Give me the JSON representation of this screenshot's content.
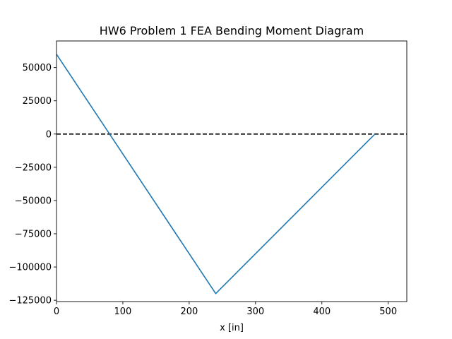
{
  "chart_data": {
    "type": "line",
    "title": "HW6 Problem 1 FEA Bending Moment Diagram",
    "xlabel": "x [in]",
    "ylabel": "",
    "xlim": [
      0,
      528
    ],
    "ylim": [
      -126000,
      70000
    ],
    "xticks": [
      0,
      100,
      200,
      300,
      400,
      500
    ],
    "yticks": [
      50000,
      25000,
      0,
      -25000,
      -50000,
      -75000,
      -100000,
      -125000
    ],
    "grid": false,
    "series": [
      {
        "color": "#1f77b4",
        "x": [
          0,
          240,
          480
        ],
        "y": [
          60000,
          -120000,
          0
        ]
      }
    ],
    "reference_line": {
      "y": 0,
      "style": "dashed",
      "color": "#000000"
    }
  }
}
